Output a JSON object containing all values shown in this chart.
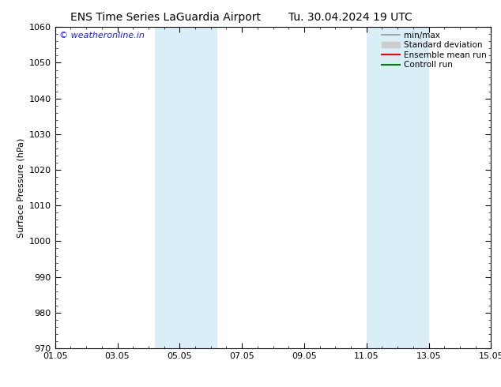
{
  "title_left": "ENS Time Series LaGuardia Airport",
  "title_right": "Tu. 30.04.2024 19 UTC",
  "ylabel": "Surface Pressure (hPa)",
  "ylim": [
    970,
    1060
  ],
  "yticks": [
    970,
    980,
    990,
    1000,
    1010,
    1020,
    1030,
    1040,
    1050,
    1060
  ],
  "xlim_start": 0,
  "xlim_end": 14,
  "xtick_positions": [
    0,
    2,
    4,
    6,
    8,
    10,
    12,
    14
  ],
  "xtick_labels": [
    "01.05",
    "03.05",
    "05.05",
    "07.05",
    "09.05",
    "11.05",
    "13.05",
    "15.05"
  ],
  "shade_bands": [
    {
      "xmin": 3.2,
      "xmax": 5.2
    },
    {
      "xmin": 10.0,
      "xmax": 12.0
    }
  ],
  "shade_color": "#daeef8",
  "background_color": "#ffffff",
  "watermark": "© weatheronline.in",
  "watermark_color": "#1a1aff",
  "legend_entries": [
    {
      "label": "min/max",
      "color": "#999999",
      "lw": 1.2
    },
    {
      "label": "Standard deviation",
      "color": "#cccccc",
      "lw": 6
    },
    {
      "label": "Ensemble mean run",
      "color": "#ff0000",
      "lw": 1.5
    },
    {
      "label": "Controll run",
      "color": "#008000",
      "lw": 1.5
    }
  ],
  "title_fontsize": 10,
  "axis_label_fontsize": 8,
  "tick_fontsize": 8,
  "legend_fontsize": 7.5
}
